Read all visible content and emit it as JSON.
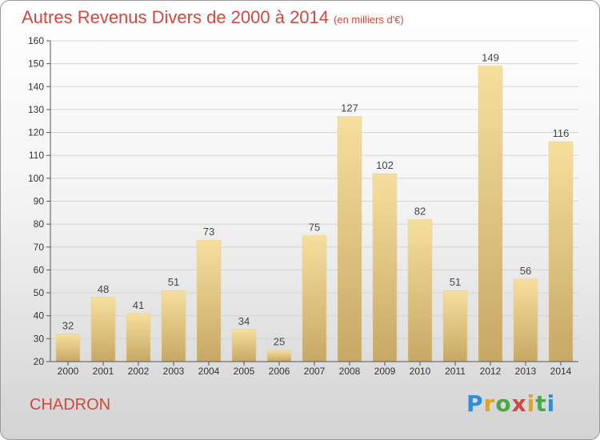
{
  "title": "Autres Revenus Divers de 2000 à 2014",
  "title_unit": "(en milliers d'€)",
  "commune": "CHADRON",
  "brand": {
    "letters": [
      "P",
      "r",
      "o",
      "x",
      "i",
      "t",
      "i"
    ],
    "colors": [
      "#2f8fd6",
      "#e8a21a",
      "#4aa84a",
      "#d0483e",
      "#e8a21a",
      "#4aa84a",
      "#2f8fd6"
    ]
  },
  "colors": {
    "title": "#d0483e",
    "bar_light": "#f5dc9a",
    "bar_dark": "#c6a763"
  },
  "chart_data": {
    "type": "bar",
    "title": "Autres Revenus Divers de 2000 à 2014",
    "xlabel": "",
    "ylabel": "",
    "categories": [
      "2000",
      "2001",
      "2002",
      "2003",
      "2004",
      "2005",
      "2006",
      "2007",
      "2008",
      "2009",
      "2010",
      "2011",
      "2012",
      "2013",
      "2014"
    ],
    "values": [
      32,
      48,
      41,
      51,
      73,
      34,
      25,
      75,
      127,
      102,
      82,
      51,
      149,
      56,
      116
    ],
    "ylim": [
      20,
      160
    ],
    "yticks": [
      20,
      30,
      40,
      50,
      60,
      70,
      80,
      90,
      100,
      110,
      120,
      130,
      140,
      150,
      160
    ],
    "grid": true,
    "data_labels": true
  }
}
